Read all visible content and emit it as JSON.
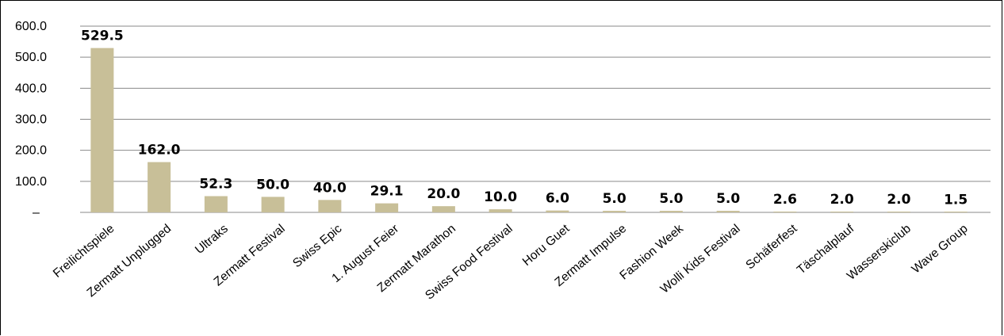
{
  "chart_data": {
    "type": "bar",
    "categories": [
      "Freilichtspiele",
      "Zermatt Unplugged",
      "Ultraks",
      "Zermatt Festival",
      "Swiss Epic",
      "1. August Feier",
      "Zermatt Marathon",
      "Swiss Food Festival",
      "Horu Guet",
      "Zermatt Impulse",
      "Fashion Week",
      "Wolli Kids Festival",
      "Schäferfest",
      "Täschalplauf",
      "Wasserskiclub",
      "Wave Group"
    ],
    "values": [
      529.5,
      162.0,
      52.3,
      50.0,
      40.0,
      29.1,
      20.0,
      10.0,
      6.0,
      5.0,
      5.0,
      5.0,
      2.6,
      2.0,
      2.0,
      1.5
    ],
    "data_labels": [
      "529.5",
      "162.0",
      "52.3",
      "50.0",
      "40.0",
      "29.1",
      "20.0",
      "10.0",
      "6.0",
      "5.0",
      "5.0",
      "5.0",
      "2.6",
      "2.0",
      "2.0",
      "1.5"
    ],
    "yticks": [
      "–",
      "100.0",
      "200.0",
      "300.0",
      "400.0",
      "500.0",
      "600.0"
    ],
    "ylim": [
      0,
      600
    ],
    "grid": true,
    "legend": "none",
    "bar_color": "#c8bf98",
    "grid_color": "#8a8a8a",
    "title": "",
    "xlabel": "",
    "ylabel": ""
  }
}
